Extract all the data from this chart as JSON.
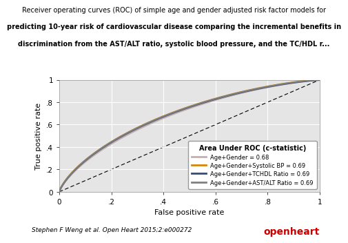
{
  "title_line1": "Receiver operating curves (ROC) of simple age and gender adjusted risk factor models for",
  "title_line2": "predicting 10-year risk of cardiovascular disease comparing the incremental benefits in",
  "title_line3": "discrimination from the AST/ALT ratio, systolic blood pressure, and the TC/HDL r...",
  "xlabel": "False positive rate",
  "ylabel": "True positive rate",
  "xlim": [
    0,
    1
  ],
  "ylim": [
    0,
    1
  ],
  "xticks": [
    0,
    0.2,
    0.4,
    0.6,
    0.8,
    1
  ],
  "yticks": [
    0,
    0.2,
    0.4,
    0.6,
    0.8,
    1
  ],
  "xtick_labels": [
    "0",
    ".2",
    ".4",
    ".6",
    ".8",
    "1"
  ],
  "ytick_labels": [
    "0",
    ".2",
    ".4",
    ".6",
    ".8",
    "1"
  ],
  "legend_title": "Area Under ROC (c-statistic)",
  "curves": [
    {
      "label": "Age+Gender = 0.68",
      "color": "#c0b0b0",
      "linewidth": 1.8,
      "auc": 0.68,
      "alpha": 1.0
    },
    {
      "label": "Age+Gender+Systolic BP = 0.69",
      "color": "#d4870a",
      "linewidth": 1.5,
      "auc": 0.69,
      "alpha": 1.0
    },
    {
      "label": "Age+Gender+TCHDL Ratio = 0.69",
      "color": "#3a4a6a",
      "linewidth": 1.5,
      "auc": 0.69,
      "alpha": 1.0
    },
    {
      "label": "Age+Gender+AST/ALT Ratio = 0.69",
      "color": "#808080",
      "linewidth": 1.5,
      "auc": 0.69,
      "alpha": 1.0
    }
  ],
  "background_color": "#e5e5e5",
  "grid_color": "#ffffff",
  "title_fontsize": 7.0,
  "axis_label_fontsize": 8,
  "tick_fontsize": 7.5,
  "legend_fontsize": 6.0,
  "legend_title_fontsize": 7.0,
  "footer_text": "Stephen F Weng et al. Open Heart 2015;2:e000272",
  "footer_brand": "openheart",
  "footer_fontsize": 6.5,
  "brand_fontsize": 10,
  "brand_color": "#cc0000"
}
